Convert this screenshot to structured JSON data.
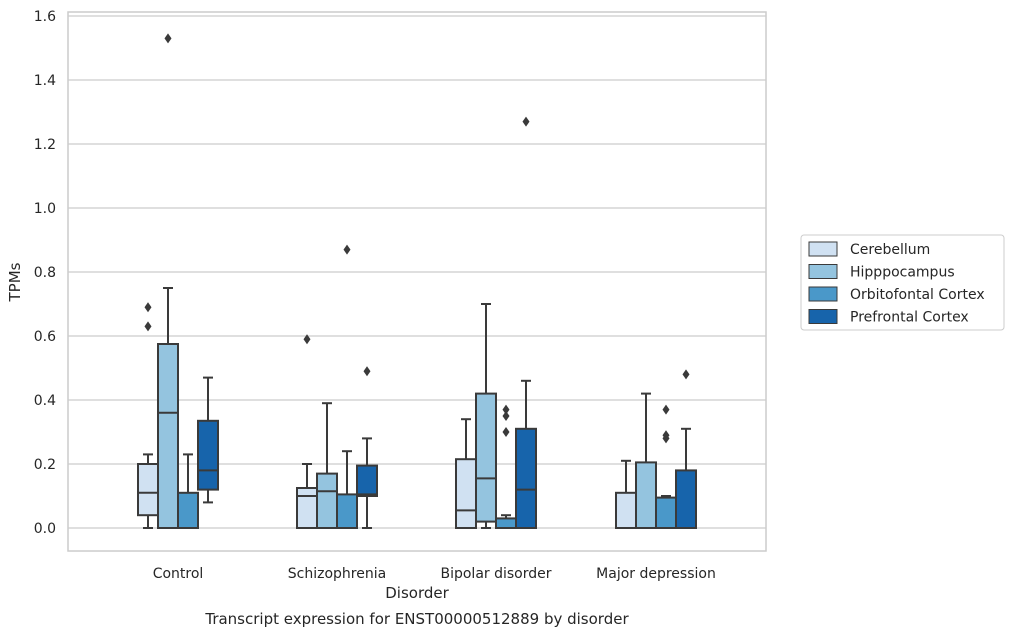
{
  "chart_data": {
    "type": "box",
    "title": "",
    "caption": "Transcript expression for ENST00000512889 by disorder",
    "xlabel": "Disorder",
    "ylabel": "TPMs",
    "ylim": [
      -0.075,
      1.61
    ],
    "yticks": [
      "0.0",
      "0.2",
      "0.4",
      "0.6",
      "0.8",
      "1.0",
      "1.2",
      "1.4",
      "1.6"
    ],
    "grid": "horizontal",
    "legend_position": "right",
    "categories": [
      "Control",
      "Schizophrenia",
      "Bipolar disorder",
      "Major depression"
    ],
    "series": [
      {
        "name": "Cerebellum",
        "color": "#d0e1f2",
        "boxes": [
          {
            "q1": 0.04,
            "median": 0.11,
            "q3": 0.2,
            "whisker_low": 0.0,
            "whisker_high": 0.23,
            "outliers": [
              0.63,
              0.69
            ]
          },
          {
            "q1": 0.0,
            "median": 0.1,
            "q3": 0.125,
            "whisker_low": 0.0,
            "whisker_high": 0.2,
            "outliers": [
              0.59
            ]
          },
          {
            "q1": 0.0,
            "median": 0.055,
            "q3": 0.215,
            "whisker_low": 0.0,
            "whisker_high": 0.34,
            "outliers": []
          },
          {
            "q1": 0.0,
            "median": 0.0,
            "q3": 0.11,
            "whisker_low": 0.0,
            "whisker_high": 0.21,
            "outliers": []
          }
        ]
      },
      {
        "name": "Hipppocampus",
        "color": "#94c4df",
        "boxes": [
          {
            "q1": 0.0,
            "median": 0.36,
            "q3": 0.575,
            "whisker_low": 0.0,
            "whisker_high": 0.75,
            "outliers": [
              1.53
            ]
          },
          {
            "q1": 0.0,
            "median": 0.115,
            "q3": 0.17,
            "whisker_low": 0.0,
            "whisker_high": 0.39,
            "outliers": []
          },
          {
            "q1": 0.02,
            "median": 0.155,
            "q3": 0.42,
            "whisker_low": 0.0,
            "whisker_high": 0.7,
            "outliers": []
          },
          {
            "q1": 0.0,
            "median": 0.0,
            "q3": 0.205,
            "whisker_low": 0.0,
            "whisker_high": 0.42,
            "outliers": []
          }
        ]
      },
      {
        "name": "Orbitofontal Cortex",
        "color": "#4a98c9",
        "boxes": [
          {
            "q1": 0.0,
            "median": 0.0,
            "q3": 0.11,
            "whisker_low": 0.0,
            "whisker_high": 0.23,
            "outliers": []
          },
          {
            "q1": 0.0,
            "median": 0.0,
            "q3": 0.105,
            "whisker_low": 0.0,
            "whisker_high": 0.24,
            "outliers": [
              0.87
            ]
          },
          {
            "q1": 0.0,
            "median": 0.0,
            "q3": 0.03,
            "whisker_low": 0.0,
            "whisker_high": 0.04,
            "outliers": [
              0.3,
              0.35,
              0.37
            ]
          },
          {
            "q1": 0.0,
            "median": 0.0,
            "q3": 0.095,
            "whisker_low": 0.0,
            "whisker_high": 0.1,
            "outliers": [
              0.28,
              0.29,
              0.37
            ]
          }
        ]
      },
      {
        "name": "Prefrontal Cortex",
        "color": "#1764ab",
        "boxes": [
          {
            "q1": 0.12,
            "median": 0.18,
            "q3": 0.335,
            "whisker_low": 0.08,
            "whisker_high": 0.47,
            "outliers": []
          },
          {
            "q1": 0.1,
            "median": 0.105,
            "q3": 0.195,
            "whisker_low": 0.0,
            "whisker_high": 0.28,
            "outliers": [
              0.49
            ]
          },
          {
            "q1": 0.0,
            "median": 0.12,
            "q3": 0.31,
            "whisker_low": 0.0,
            "whisker_high": 0.46,
            "outliers": [
              1.27
            ]
          },
          {
            "q1": 0.0,
            "median": 0.0,
            "q3": 0.18,
            "whisker_low": 0.0,
            "whisker_high": 0.31,
            "outliers": [
              0.48
            ]
          }
        ]
      }
    ]
  }
}
